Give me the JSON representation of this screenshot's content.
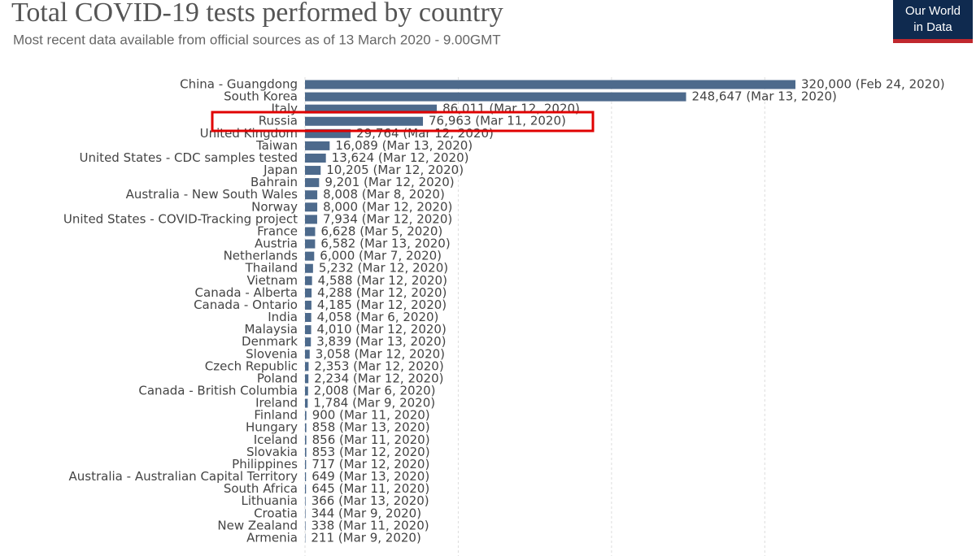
{
  "chart_data": {
    "type": "bar",
    "orientation": "horizontal",
    "title": "Total COVID-19 tests performed by country",
    "subtitle": "Most recent data available from official sources as of 13 March 2020 - 9.00GMT",
    "logo": [
      "Our World",
      "in Data"
    ],
    "color": "#4d6a8c",
    "grid": true,
    "xlim": [
      0,
      320000
    ],
    "xticks": [
      0,
      100000,
      200000,
      300000
    ],
    "categories": [
      "China - Guangdong",
      "South Korea",
      "Italy",
      "Russia",
      "United Kingdom",
      "Taiwan",
      "United States - CDC samples tested",
      "Japan",
      "Bahrain",
      "Australia - New South Wales",
      "Norway",
      "United States - COVID-Tracking project",
      "France",
      "Austria",
      "Netherlands",
      "Thailand",
      "Vietnam",
      "Canada - Alberta",
      "Canada - Ontario",
      "India",
      "Malaysia",
      "Denmark",
      "Slovenia",
      "Czech Republic",
      "Poland",
      "Canada - British Columbia",
      "Ireland",
      "Finland",
      "Hungary",
      "Iceland",
      "Slovakia",
      "Philippines",
      "Australia - Australian Capital Territory",
      "South Africa",
      "Lithuania",
      "Croatia",
      "New Zealand",
      "Armenia"
    ],
    "values": [
      320000,
      248647,
      86011,
      76963,
      29764,
      16089,
      13624,
      10205,
      9201,
      8008,
      8000,
      7934,
      6628,
      6582,
      6000,
      5232,
      4588,
      4288,
      4185,
      4058,
      4010,
      3839,
      3058,
      2353,
      2234,
      2008,
      1784,
      900,
      858,
      856,
      853,
      717,
      649,
      645,
      366,
      344,
      338,
      211
    ],
    "value_labels": [
      "320,000 (Feb 24, 2020)",
      "248,647 (Mar 13, 2020)",
      "86,011 (Mar 12, 2020)",
      "76,963 (Mar 11, 2020)",
      "29,764 (Mar 12, 2020)",
      "16,089 (Mar 13, 2020)",
      "13,624 (Mar 12, 2020)",
      "10,205 (Mar 12, 2020)",
      "9,201 (Mar 12, 2020)",
      "8,008 (Mar 8, 2020)",
      "8,000 (Mar 12, 2020)",
      "7,934 (Mar 12, 2020)",
      "6,628 (Mar 5, 2020)",
      "6,582 (Mar 13, 2020)",
      "6,000 (Mar 7, 2020)",
      "5,232 (Mar 12, 2020)",
      "4,588 (Mar 12, 2020)",
      "4,288 (Mar 12, 2020)",
      "4,185 (Mar 12, 2020)",
      "4,058 (Mar 6, 2020)",
      "4,010 (Mar 12, 2020)",
      "3,839 (Mar 13, 2020)",
      "3,058 (Mar 12, 2020)",
      "2,353 (Mar 12, 2020)",
      "2,234 (Mar 12, 2020)",
      "2,008 (Mar 6, 2020)",
      "1,784 (Mar 9, 2020)",
      "900 (Mar 11, 2020)",
      "858 (Mar 13, 2020)",
      "856 (Mar 11, 2020)",
      "853 (Mar 12, 2020)",
      "717 (Mar 12, 2020)",
      "649 (Mar 13, 2020)",
      "645 (Mar 11, 2020)",
      "366 (Mar 13, 2020)",
      "344 (Mar 9, 2020)",
      "338 (Mar 11, 2020)",
      "211 (Mar 9, 2020)"
    ]
  }
}
